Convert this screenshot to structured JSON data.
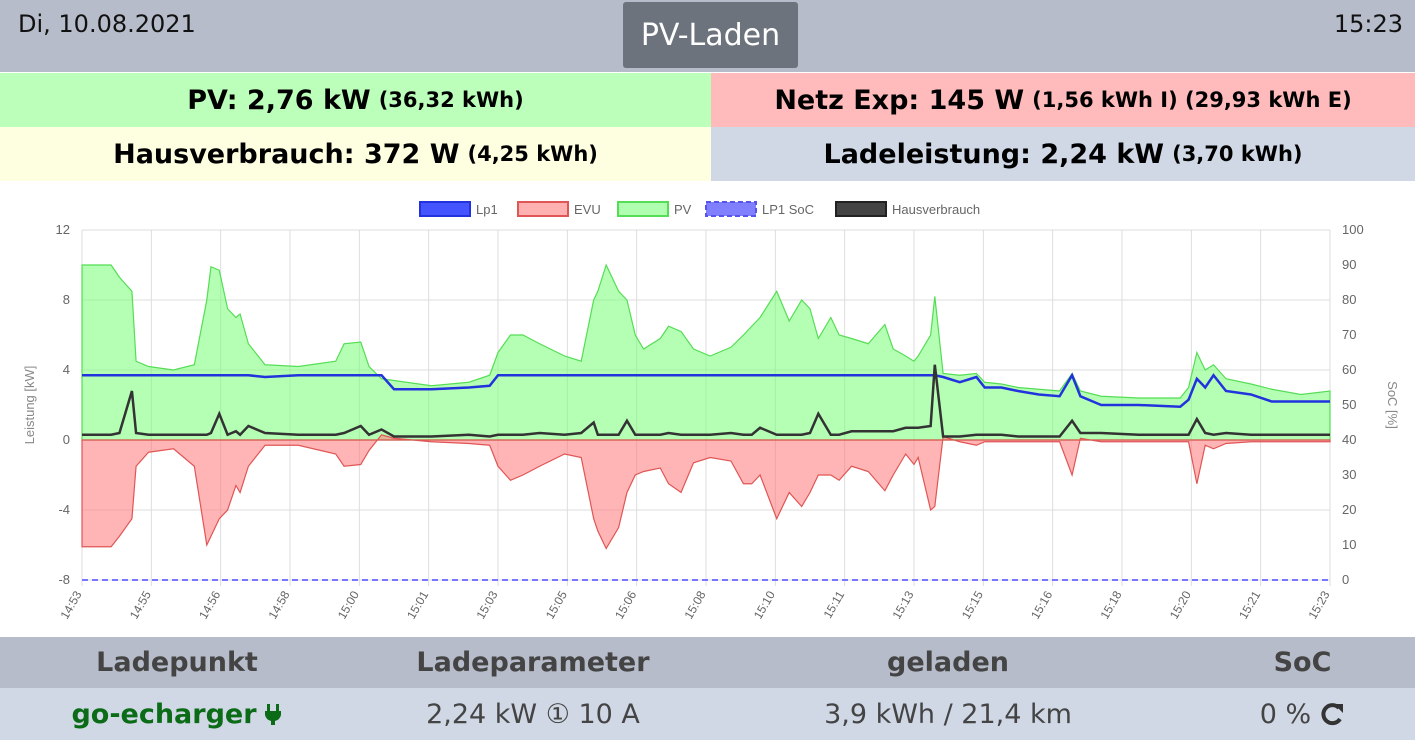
{
  "header": {
    "date": "Di, 10.08.2021",
    "title": "PV-Laden",
    "time": "15:23"
  },
  "summary": {
    "pv": {
      "main": "PV: 2,76 kW",
      "sub": "(36,32 kWh)"
    },
    "netz": {
      "main": "Netz Exp: 145 W",
      "sub": "(1,56 kWh I) (29,93 kWh E)"
    },
    "haus": {
      "main": "Hausverbrauch: 372 W",
      "sub": "(4,25 kWh)"
    },
    "lade": {
      "main": "Ladeleistung: 2,24 kW",
      "sub": "(3,70 kWh)"
    }
  },
  "chart_data": {
    "type": "line",
    "legend": [
      "Lp1",
      "EVU",
      "PV",
      "LP1 SoC",
      "Hausverbrauch"
    ],
    "legend_placement": "top",
    "colors": {
      "Lp1": "#2233dd",
      "EVU": "#e05555",
      "PV": "#55dd55",
      "LP1 SoC": "#7777ff",
      "Hausverbrauch": "#333333"
    },
    "ylabel": "Leistung [kW]",
    "y2label": "SoC [%]",
    "ylim": [
      -8,
      12
    ],
    "yticks": [
      12,
      8,
      4,
      0,
      -4,
      -8
    ],
    "y2lim": [
      0,
      100
    ],
    "y2ticks": [
      100,
      90,
      80,
      70,
      60,
      50,
      40,
      30,
      20,
      10,
      0
    ],
    "xlim": [
      0,
      30
    ],
    "xtick_labels": [
      "14:53",
      "14:55",
      "14:56",
      "14:58",
      "15:00",
      "15:01",
      "15:03",
      "15:05",
      "15:06",
      "15:08",
      "15:10",
      "15:11",
      "15:13",
      "15:15",
      "15:16",
      "15:18",
      "15:20",
      "15:21",
      "15:23"
    ],
    "x_minutes": [
      0,
      0.7,
      0.9,
      1.2,
      1.3,
      1.6,
      2.2,
      2.7,
      3.0,
      3.1,
      3.3,
      3.5,
      3.7,
      3.8,
      4.0,
      4.4,
      5.2,
      6.1,
      6.3,
      6.7,
      6.9,
      7.2,
      7.5,
      8.4,
      9.3,
      9.8,
      10.0,
      10.3,
      10.6,
      11.0,
      11.6,
      12.0,
      12.3,
      12.4,
      12.6,
      12.9,
      13.1,
      13.3,
      13.5,
      13.9,
      14.1,
      14.4,
      14.7,
      15.1,
      15.6,
      15.9,
      16.1,
      16.3,
      16.7,
      17.0,
      17.3,
      17.5,
      17.7,
      18.0,
      18.2,
      18.5,
      18.9,
      19.3,
      19.5,
      19.8,
      20.0,
      20.1,
      20.4,
      20.5,
      20.7,
      21.1,
      21.5,
      21.7,
      22.1,
      22.5,
      23.0,
      23.5,
      23.8,
      24.0,
      24.5,
      25.4,
      26.4,
      26.6,
      26.8,
      27.0,
      27.2,
      27.5,
      28.1,
      28.6,
      29.3,
      30.0
    ],
    "series": [
      {
        "name": "PV",
        "values": [
          10,
          10,
          9.3,
          8.5,
          4.5,
          4.2,
          4.0,
          4.3,
          8,
          9.9,
          9.7,
          7.5,
          7,
          7.2,
          5.5,
          4.3,
          4.2,
          4.5,
          5.5,
          5.6,
          4.2,
          3.5,
          3.4,
          3.1,
          3.3,
          3.7,
          5,
          6,
          6,
          5.5,
          4.8,
          4.5,
          8,
          8.5,
          10,
          8.5,
          8,
          6,
          5.2,
          5.8,
          6.5,
          6.2,
          5.2,
          4.8,
          5.3,
          6,
          6.5,
          7,
          8.5,
          6.8,
          8,
          7.5,
          5.8,
          7,
          6,
          5.8,
          5.5,
          6.6,
          5.2,
          4.8,
          4.5,
          4.8,
          6,
          8.2,
          3.8,
          3.7,
          3.8,
          3.3,
          3.2,
          3.0,
          2.9,
          2.8,
          3.8,
          2.8,
          2.5,
          2.4,
          2.4,
          3.0,
          5.0,
          4.0,
          4.3,
          3.5,
          3.2,
          2.9,
          2.6,
          2.8
        ]
      },
      {
        "name": "EVU",
        "values": [
          -6.1,
          -6.1,
          -5.5,
          -4.5,
          -1.5,
          -0.7,
          -0.5,
          -1.5,
          -6.0,
          -5.5,
          -4.5,
          -4.0,
          -2.6,
          -3.0,
          -1.5,
          -0.3,
          -0.3,
          -0.8,
          -1.5,
          -1.4,
          -0.6,
          0.3,
          0.1,
          -0.1,
          -0.2,
          -0.3,
          -1.5,
          -2.3,
          -2.0,
          -1.5,
          -0.8,
          -1.0,
          -4.5,
          -5.2,
          -6.2,
          -5.0,
          -3.0,
          -2.0,
          -1.8,
          -1.6,
          -2.5,
          -3.0,
          -1.3,
          -1.0,
          -1.2,
          -2.5,
          -2.5,
          -2.0,
          -4.5,
          -3.0,
          -3.8,
          -3.0,
          -2.0,
          -2.0,
          -2.3,
          -1.5,
          -1.8,
          -2.9,
          -2.0,
          -0.8,
          -1.4,
          -1.0,
          -4.0,
          -3.8,
          0.2,
          -0.1,
          -0.3,
          -0.1,
          -0.1,
          -0.1,
          -0.1,
          -0.1,
          -2.0,
          0.1,
          -0.1,
          -0.1,
          -0.1,
          -0.1,
          -2.5,
          -0.3,
          -0.5,
          -0.2,
          -0.1,
          -0.1,
          -0.1,
          -0.1
        ]
      },
      {
        "name": "Lp1",
        "values": [
          3.7,
          3.7,
          3.7,
          3.7,
          3.7,
          3.7,
          3.7,
          3.7,
          3.7,
          3.7,
          3.7,
          3.7,
          3.7,
          3.7,
          3.7,
          3.6,
          3.7,
          3.7,
          3.7,
          3.7,
          3.7,
          3.7,
          2.9,
          2.9,
          3.0,
          3.1,
          3.7,
          3.7,
          3.7,
          3.7,
          3.7,
          3.7,
          3.7,
          3.7,
          3.7,
          3.7,
          3.7,
          3.7,
          3.7,
          3.7,
          3.7,
          3.7,
          3.7,
          3.7,
          3.7,
          3.7,
          3.7,
          3.7,
          3.7,
          3.7,
          3.7,
          3.7,
          3.7,
          3.7,
          3.7,
          3.7,
          3.7,
          3.7,
          3.7,
          3.7,
          3.7,
          3.7,
          3.7,
          3.7,
          3.6,
          3.3,
          3.6,
          3.0,
          3.0,
          2.8,
          2.6,
          2.5,
          3.7,
          2.5,
          2.0,
          2.0,
          1.9,
          2.3,
          3.5,
          3.0,
          3.7,
          2.8,
          2.6,
          2.2,
          2.2,
          2.2
        ]
      },
      {
        "name": "Hausverbrauch",
        "values": [
          0.3,
          0.3,
          0.4,
          2.8,
          0.4,
          0.3,
          0.3,
          0.3,
          0.3,
          0.4,
          1.5,
          0.3,
          0.5,
          0.3,
          0.8,
          0.4,
          0.3,
          0.3,
          0.4,
          0.8,
          0.3,
          0.6,
          0.2,
          0.2,
          0.3,
          0.2,
          0.3,
          0.3,
          0.3,
          0.4,
          0.3,
          0.4,
          1.0,
          0.3,
          0.3,
          0.3,
          1.1,
          0.3,
          0.3,
          0.3,
          0.4,
          0.3,
          0.3,
          0.3,
          0.4,
          0.3,
          0.3,
          0.7,
          0.3,
          0.3,
          0.3,
          0.4,
          1.5,
          0.3,
          0.3,
          0.5,
          0.5,
          0.5,
          0.5,
          0.7,
          0.7,
          0.7,
          0.8,
          4.3,
          0.2,
          0.2,
          0.3,
          0.3,
          0.3,
          0.2,
          0.2,
          0.2,
          1.1,
          0.4,
          0.4,
          0.3,
          0.3,
          0.3,
          1.2,
          0.4,
          0.3,
          0.4,
          0.3,
          0.3,
          0.3,
          0.3
        ]
      },
      {
        "name": "LP1 SoC",
        "axis": "right",
        "constant": 0
      }
    ]
  },
  "table": {
    "headers": [
      "Ladepunkt",
      "Ladeparameter",
      "geladen",
      "SoC"
    ],
    "row": {
      "name": "go-echarger",
      "params": "2,24 kW ① 10 A",
      "charged": "3,9 kWh / 21,4 km",
      "soc": "0 %"
    }
  }
}
